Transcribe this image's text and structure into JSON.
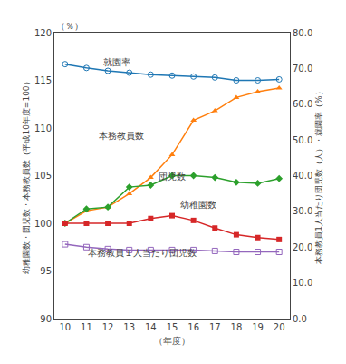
{
  "chart_data": {
    "type": "line",
    "x": [
      10,
      11,
      12,
      13,
      14,
      15,
      16,
      17,
      18,
      19,
      20
    ],
    "series": [
      {
        "name": "就園率",
        "marker": "circle-open",
        "values": [
          116.7,
          116.3,
          116.0,
          115.8,
          115.6,
          115.5,
          115.4,
          115.3,
          115.0,
          115.0,
          115.1
        ]
      },
      {
        "name": "本務教員数",
        "marker": "triangle-up",
        "values": [
          100.0,
          101.3,
          101.7,
          103.1,
          104.8,
          107.2,
          110.8,
          111.8,
          113.2,
          113.8,
          114.2
        ]
      },
      {
        "name": "団児数",
        "marker": "diamond",
        "values": [
          100.0,
          101.5,
          101.7,
          103.8,
          104.0,
          105.0,
          105.0,
          104.8,
          104.3,
          104.2,
          104.7
        ]
      },
      {
        "name": "幼稚園数",
        "marker": "square",
        "values": [
          100.0,
          100.0,
          100.0,
          100.0,
          100.5,
          100.8,
          100.3,
          99.5,
          98.8,
          98.5,
          98.3
        ]
      },
      {
        "name": "本務教員１人当たり団児数",
        "marker": "square-open",
        "values": [
          97.8,
          97.5,
          97.3,
          97.2,
          97.2,
          97.2,
          97.2,
          97.1,
          97.0,
          97.0,
          97.0
        ]
      }
    ],
    "xlabel": "（年度）",
    "ylabel": "幼稚園数・団児数・本務教員数（平成10年度=100）",
    "y2label": "本務教員1人当たり団児数（人）・就園率（%）",
    "y_unit": "（％）",
    "xlim": [
      9.5,
      20.5
    ],
    "xticks": [
      10,
      11,
      12,
      13,
      14,
      15,
      16,
      17,
      18,
      19,
      20
    ],
    "ylim": [
      90,
      120
    ],
    "yticks": [
      90,
      95,
      100,
      105,
      110,
      115,
      120
    ],
    "y2lim": [
      0.0,
      80.0
    ],
    "y2ticks": [
      {
        "value": 0.0,
        "label": "0.0"
      },
      {
        "value": 10.0,
        "label": "10.0"
      },
      {
        "value": 20.0,
        "label": "20.0"
      },
      {
        "value": 30.0,
        "label": "30.0"
      },
      {
        "value": 40.0,
        "label": "40.0"
      },
      {
        "value": 50.0,
        "label": "50.0"
      },
      {
        "value": 60.0,
        "label": "60.0"
      },
      {
        "value": 70.0,
        "label": "70.0"
      },
      {
        "value": 80.0,
        "label": "80.0"
      }
    ],
    "annotations": [
      {
        "text": "就園率",
        "x": 11.7,
        "y": 116.2
      },
      {
        "text": "本務教員数",
        "x": 11.5,
        "y": 108.5
      },
      {
        "text": "団児数",
        "x": 14.3,
        "y": 104.2
      },
      {
        "text": "幼稚園数",
        "x": 15.3,
        "y": 101.2
      },
      {
        "text": "本務教員１人当たり団児数",
        "x": 11.0,
        "y": 96.2
      }
    ],
    "grid": false,
    "legend": false
  }
}
